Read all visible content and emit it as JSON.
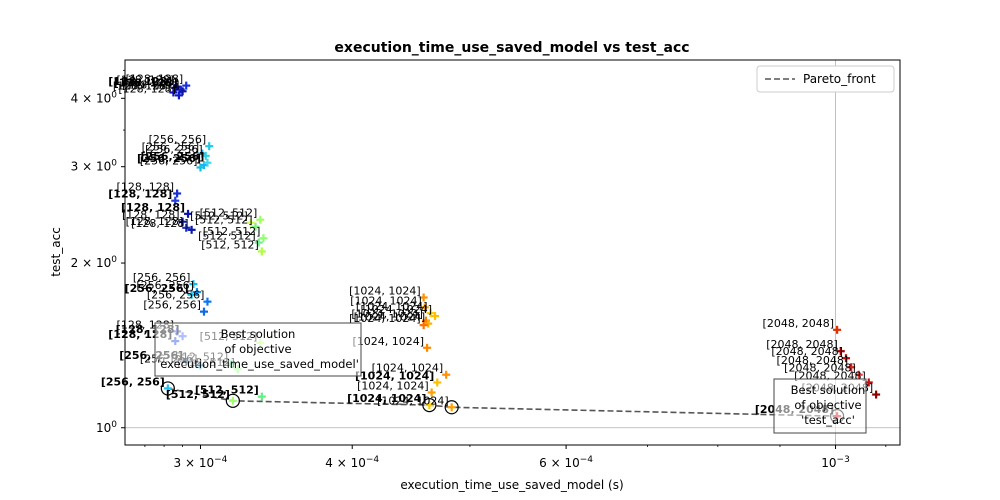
{
  "chart_data": {
    "type": "scatter",
    "title": "execution_time_use_saved_model vs test_acc",
    "xlabel": "execution_time_use_saved_model (s)",
    "ylabel": "test_acc",
    "xscale": "log",
    "yscale": "log",
    "xlim": [
      0.00026,
      0.00113
    ],
    "ylim": [
      0.93,
      4.7
    ],
    "grid": "reference-lines-only",
    "x_ticks": [
      {
        "value": 0.0003,
        "label": "3 × 10",
        "exp": "−4"
      },
      {
        "value": 0.0004,
        "label": "4 × 10",
        "exp": "−4"
      },
      {
        "value": 0.0006,
        "label": "6 × 10",
        "exp": "−4"
      },
      {
        "value": 0.001,
        "label": "10",
        "exp": "−3"
      }
    ],
    "y_ticks": [
      {
        "value": 1,
        "label": "10",
        "exp": "0"
      },
      {
        "value": 2,
        "label": "2 × 10",
        "exp": "0"
      },
      {
        "value": 3,
        "label": "3 × 10",
        "exp": "0"
      },
      {
        "value": 4,
        "label": "4 × 10",
        "exp": "0"
      }
    ],
    "reference_lines": {
      "x": 0.001,
      "y": 1.0
    },
    "legend": {
      "position": "top-right",
      "entries": [
        "Pareto_front"
      ]
    },
    "pareto_front": {
      "name": "Pareto_front",
      "points": [
        {
          "x": 0.000282,
          "y": 1.18
        },
        {
          "x": 0.000319,
          "y": 1.12
        },
        {
          "x": 0.000463,
          "y": 1.1
        },
        {
          "x": 0.000483,
          "y": 1.09
        },
        {
          "x": 0.001003,
          "y": 1.05
        }
      ]
    },
    "points": [
      {
        "x": 0.000287,
        "y": 4.2,
        "label": "[128, 128]",
        "color": "#0a10c8",
        "bold": false
      },
      {
        "x": 0.000289,
        "y": 4.15,
        "label": "[128, 128]",
        "color": "#1520d8",
        "bold": true
      },
      {
        "x": 0.000285,
        "y": 4.1,
        "label": "[128, 128]",
        "color": "#0c14b8",
        "bold": false
      },
      {
        "x": 0.000288,
        "y": 4.05,
        "label": "[128, 128]",
        "color": "#1018c8",
        "bold": false
      },
      {
        "x": 0.00029,
        "y": 4.12,
        "label": "[128, 128]",
        "color": "#0d1aa0",
        "bold": false
      },
      {
        "x": 0.000292,
        "y": 4.22,
        "label": "[128, 128]",
        "color": "#1830e0",
        "bold": false
      },
      {
        "x": 0.000286,
        "y": 4.18,
        "label": "[128, 128]",
        "color": "#0a0aa0",
        "bold": true
      },
      {
        "x": 0.000305,
        "y": 3.27,
        "label": "[256, 256]",
        "color": "#20c8e8",
        "bold": false
      },
      {
        "x": 0.000301,
        "y": 3.17,
        "label": "[256, 256]",
        "color": "#10a8f0",
        "bold": false
      },
      {
        "x": 0.000303,
        "y": 3.14,
        "label": "[256, 256]",
        "color": "#30d0e0",
        "bold": false
      },
      {
        "x": 0.000302,
        "y": 3.02,
        "label": "[256, 256]",
        "color": "#18b0f8",
        "bold": true
      },
      {
        "x": 0.0003,
        "y": 2.99,
        "label": "[256, 256]",
        "color": "#10c0e0",
        "bold": false
      },
      {
        "x": 0.000304,
        "y": 3.05,
        "label": "[256, 256]",
        "color": "#40d8f0",
        "bold": true
      },
      {
        "x": 0.000287,
        "y": 2.68,
        "label": "[128, 128]",
        "color": "#1830d0",
        "bold": false
      },
      {
        "x": 0.000286,
        "y": 2.6,
        "label": "[128, 128]",
        "color": "#2040e0",
        "bold": true
      },
      {
        "x": 0.000293,
        "y": 2.46,
        "label": "[128, 128]",
        "color": "#0a10b0",
        "bold": true
      },
      {
        "x": 0.00029,
        "y": 2.38,
        "label": "[128, 128]",
        "color": "#1020c0",
        "bold": false
      },
      {
        "x": 0.000292,
        "y": 2.32,
        "label": "[128, 128]",
        "color": "#1a30d8",
        "bold": false
      },
      {
        "x": 0.000295,
        "y": 2.3,
        "label": "[128, 128]",
        "color": "#0c18a8",
        "bold": false
      },
      {
        "x": 0.000336,
        "y": 2.4,
        "label": "[512, 512]",
        "color": "#a0ff60",
        "bold": false
      },
      {
        "x": 0.000333,
        "y": 2.33,
        "label": "[512, 512]",
        "color": "#80f080",
        "bold": false
      },
      {
        "x": 0.00033,
        "y": 2.37,
        "label": "[512, 512]",
        "color": "#c8ff50",
        "bold": false
      },
      {
        "x": 0.000338,
        "y": 2.22,
        "label": "[512, 512]",
        "color": "#90ff70",
        "bold": false
      },
      {
        "x": 0.000335,
        "y": 2.18,
        "label": "[512, 512]",
        "color": "#70f090",
        "bold": false
      },
      {
        "x": 0.000337,
        "y": 2.1,
        "label": "[512, 512]",
        "color": "#b0ff40",
        "bold": false
      },
      {
        "x": 0.000296,
        "y": 1.83,
        "label": "[256, 256]",
        "color": "#10b8f0",
        "bold": false
      },
      {
        "x": 0.000298,
        "y": 1.77,
        "label": "[256, 256]",
        "color": "#0890e8",
        "bold": false
      },
      {
        "x": 0.000295,
        "y": 1.75,
        "label": "[256, 256]",
        "color": "#20c0e8",
        "bold": true
      },
      {
        "x": 0.000304,
        "y": 1.7,
        "label": "[256, 256]",
        "color": "#0878f0",
        "bold": false
      },
      {
        "x": 0.000302,
        "y": 1.63,
        "label": "[256, 256]",
        "color": "#1068e8",
        "bold": false
      },
      {
        "x": 0.000458,
        "y": 1.73,
        "label": "[1024, 1024]",
        "color": "#ff9000",
        "bold": false
      },
      {
        "x": 0.000459,
        "y": 1.66,
        "label": "[1024, 1024]",
        "color": "#ffa000",
        "bold": false
      },
      {
        "x": 0.000464,
        "y": 1.62,
        "label": "[1024, 1024]",
        "color": "#ffd000",
        "bold": false
      },
      {
        "x": 0.000468,
        "y": 1.6,
        "label": "[1024, 1024]",
        "color": "#ffc000",
        "bold": false
      },
      {
        "x": 0.00046,
        "y": 1.57,
        "label": "[1024, 1024]",
        "color": "#ff8000",
        "bold": false
      },
      {
        "x": 0.000462,
        "y": 1.55,
        "label": "[1024, 1024]",
        "color": "#ffb000",
        "bold": false
      },
      {
        "x": 0.000458,
        "y": 1.54,
        "label": "[1024, 1024]",
        "color": "#ff7000",
        "bold": false
      },
      {
        "x": 0.000287,
        "y": 1.5,
        "label": "[128, 128]",
        "color": "#4060f0",
        "bold": false
      },
      {
        "x": 0.00029,
        "y": 1.47,
        "label": "[128, 128]",
        "color": "#5070ff",
        "bold": true
      },
      {
        "x": 0.000286,
        "y": 1.44,
        "label": "[128, 128]",
        "color": "#3050e0",
        "bold": true
      },
      {
        "x": 0.000336,
        "y": 1.43,
        "label": "[512, 512]",
        "color": "#c0ff80",
        "bold": false
      },
      {
        "x": 0.000461,
        "y": 1.4,
        "label": "[1024, 1024]",
        "color": "#ff8800",
        "bold": false
      },
      {
        "x": 0.001003,
        "y": 1.51,
        "label": "[2048, 2048]",
        "color": "#e03000",
        "bold": false
      },
      {
        "x": 0.00101,
        "y": 1.38,
        "label": "[2048, 2048]",
        "color": "#a00000",
        "bold": false
      },
      {
        "x": 0.00102,
        "y": 1.34,
        "label": "[2048, 2048]",
        "color": "#d00000",
        "bold": false
      },
      {
        "x": 0.00103,
        "y": 1.29,
        "label": "[2048, 2048]",
        "color": "#e02020",
        "bold": false
      },
      {
        "x": 0.001045,
        "y": 1.25,
        "label": "[2048, 2048]",
        "color": "#f04040",
        "bold": false
      },
      {
        "x": 0.001065,
        "y": 1.21,
        "label": "[2048, 2048]",
        "color": "#c01010",
        "bold": false
      },
      {
        "x": 0.00108,
        "y": 1.15,
        "label": "[2048, 2048]",
        "color": "#900000",
        "bold": false
      },
      {
        "x": 0.000292,
        "y": 1.32,
        "label": "[256, 256]",
        "color": "#1090e0",
        "bold": true
      },
      {
        "x": 0.0003,
        "y": 1.3,
        "label": "[256, 256]",
        "color": "#20b0f0",
        "bold": false
      },
      {
        "x": 0.000318,
        "y": 1.31,
        "label": "[512, 512]",
        "color": "#70ffa0",
        "bold": false
      },
      {
        "x": 0.000322,
        "y": 1.28,
        "label": "[512, 512]",
        "color": "#90ff80",
        "bold": false
      },
      {
        "x": 0.000478,
        "y": 1.25,
        "label": "[1024, 1024]",
        "color": "#ff9000",
        "bold": false
      },
      {
        "x": 0.00047,
        "y": 1.21,
        "label": "[1024, 1024]",
        "color": "#ffc000",
        "bold": true
      },
      {
        "x": 0.000465,
        "y": 1.16,
        "label": "[1024, 1024]",
        "color": "#ffa000",
        "bold": false
      },
      {
        "x": 0.000337,
        "y": 1.14,
        "label": "[512, 512]",
        "color": "#60f080",
        "bold": true
      },
      {
        "x": 0.000282,
        "y": 1.18,
        "label": "[256, 256]",
        "color": "#20c0f0",
        "bold": true
      },
      {
        "x": 0.000319,
        "y": 1.12,
        "label": "[512, 512]",
        "color": "#a0ff70",
        "bold": true
      },
      {
        "x": 0.000463,
        "y": 1.1,
        "label": "[1024, 1024]",
        "color": "#ffd000",
        "bold": true
      },
      {
        "x": 0.000483,
        "y": 1.09,
        "label": "[1024, 1024]",
        "color": "#ffa000",
        "bold": false
      },
      {
        "x": 0.001003,
        "y": 1.05,
        "label": "[2048, 2048]",
        "color": "#d02020",
        "bold": true
      }
    ],
    "annotations": [
      {
        "id": "best-exec",
        "lines": [
          "Best solution",
          "of objective",
          "'execution_time_use_saved_model'"
        ],
        "anchor": {
          "x": 0.000282,
          "y": 1.18
        }
      },
      {
        "id": "best-acc",
        "lines": [
          "Best solution",
          "of objective",
          "'test_acc'"
        ],
        "anchor": {
          "x": 0.001003,
          "y": 1.05
        }
      }
    ]
  }
}
